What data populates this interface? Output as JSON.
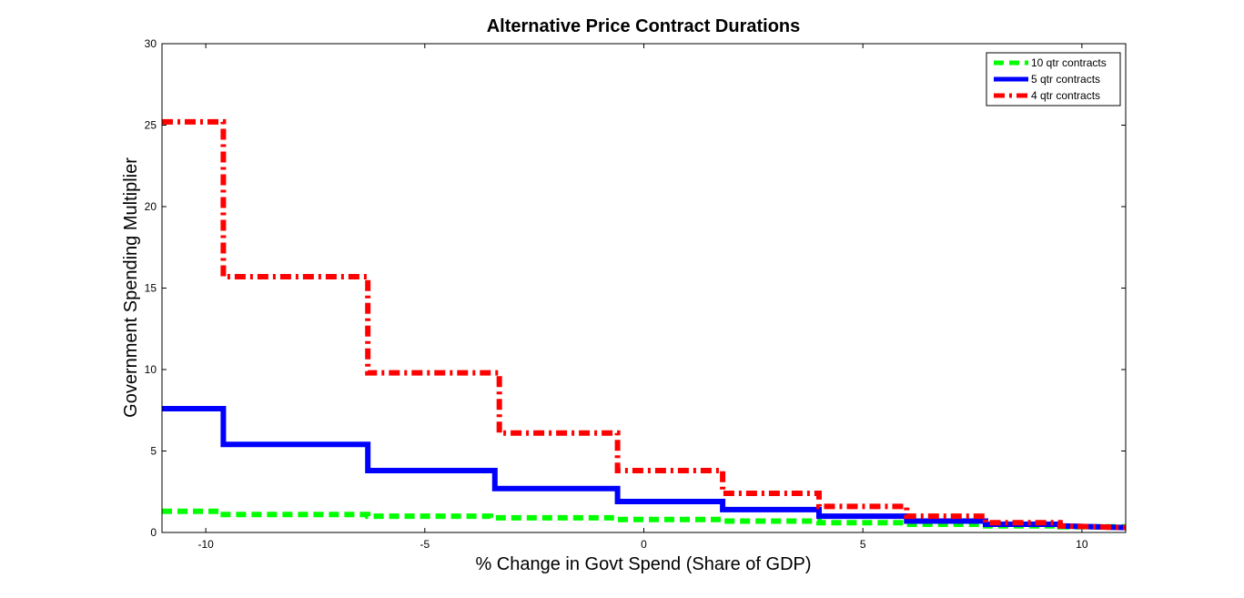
{
  "chart_data": {
    "type": "line",
    "title": "Alternative Price Contract Durations",
    "xlabel": "% Change in Govt Spend (Share of GDP)",
    "ylabel": "Government Spending Multiplier",
    "xlim": [
      -11,
      11
    ],
    "ylim": [
      0,
      30
    ],
    "xticks": [
      -10,
      -5,
      0,
      5,
      10
    ],
    "yticks": [
      0,
      5,
      10,
      15,
      20,
      25,
      30
    ],
    "xtick_labels": [
      "-10",
      "-5",
      "0",
      "5",
      "10"
    ],
    "ytick_labels": [
      "0",
      "5",
      "10",
      "15",
      "20",
      "25",
      "30"
    ],
    "grid": false,
    "legend_position": "top-right",
    "series": [
      {
        "name": "10 qtr contracts",
        "color": "#00ff00",
        "style": "dashed",
        "x": [
          -11,
          -9.6,
          -9.6,
          -6.3,
          -6.3,
          -3.5,
          -3.5,
          -0.6,
          -0.6,
          1.8,
          1.8,
          4.0,
          4.0,
          6.0,
          6.0,
          7.8,
          7.8,
          9.5,
          9.5,
          11
        ],
        "y": [
          1.3,
          1.3,
          1.1,
          1.1,
          1.0,
          1.0,
          0.9,
          0.9,
          0.8,
          0.8,
          0.7,
          0.7,
          0.6,
          0.6,
          0.5,
          0.5,
          0.4,
          0.4,
          0.35,
          0.35
        ]
      },
      {
        "name": "5 qtr contracts",
        "color": "#0000ff",
        "style": "solid",
        "x": [
          -11,
          -9.6,
          -9.6,
          -6.3,
          -6.3,
          -3.4,
          -3.4,
          -0.6,
          -0.6,
          1.8,
          1.8,
          4.0,
          4.0,
          6.0,
          6.0,
          7.8,
          7.8,
          9.5,
          9.5,
          11
        ],
        "y": [
          7.6,
          7.6,
          5.4,
          5.4,
          3.8,
          3.8,
          2.7,
          2.7,
          1.9,
          1.9,
          1.4,
          1.4,
          1.0,
          1.0,
          0.7,
          0.7,
          0.5,
          0.5,
          0.4,
          0.3
        ]
      },
      {
        "name": "4 qtr contracts",
        "color": "#ff0000",
        "style": "dash-dot",
        "x": [
          -11,
          -9.6,
          -9.6,
          -6.3,
          -6.3,
          -3.3,
          -3.3,
          -0.6,
          -0.6,
          1.8,
          1.8,
          4.0,
          4.0,
          6.0,
          6.0,
          7.8,
          7.8,
          9.5,
          9.5,
          11
        ],
        "y": [
          25.2,
          25.2,
          15.7,
          15.7,
          9.8,
          9.8,
          6.1,
          6.1,
          3.8,
          3.8,
          2.4,
          2.4,
          1.6,
          1.6,
          1.0,
          1.0,
          0.6,
          0.6,
          0.4,
          0.3
        ]
      }
    ]
  }
}
